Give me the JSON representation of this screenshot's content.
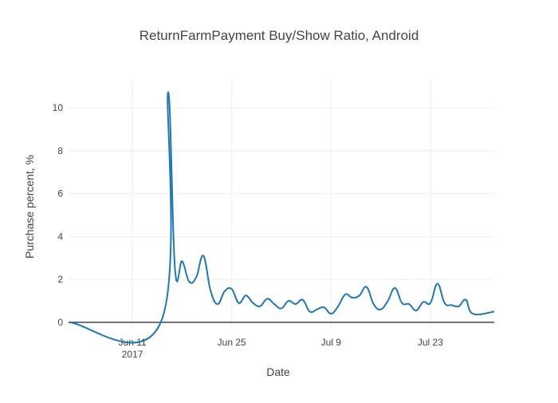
{
  "chart_data": {
    "type": "line",
    "title": "ReturnFarmPayment Buy/Show Ratio, Android",
    "xlabel": "Date",
    "ylabel": "Purchase percent, %",
    "xlim": [
      "2017-06-02",
      "2017-08-01"
    ],
    "ylim": [
      -0.3,
      11.3
    ],
    "grid": true,
    "legend": "none",
    "line_color": "#1f77b4",
    "x_ticks": [
      {
        "date": "2017-06-11",
        "label": "Jun 11",
        "sublabel": "2017"
      },
      {
        "date": "2017-06-25",
        "label": "Jun 25",
        "sublabel": ""
      },
      {
        "date": "2017-07-09",
        "label": "Jul 9",
        "sublabel": ""
      },
      {
        "date": "2017-07-23",
        "label": "Jul 23",
        "sublabel": ""
      }
    ],
    "y_ticks": [
      0,
      2,
      4,
      6,
      8,
      10
    ],
    "series": [
      {
        "x": [
          "2017-06-02",
          "2017-06-15",
          "2017-06-16",
          "2017-06-17",
          "2017-06-18",
          "2017-06-19",
          "2017-06-20",
          "2017-06-21",
          "2017-06-22",
          "2017-06-23",
          "2017-06-24",
          "2017-06-25",
          "2017-06-26",
          "2017-06-27",
          "2017-06-28",
          "2017-06-29",
          "2017-06-30",
          "2017-07-01",
          "2017-07-02",
          "2017-07-03",
          "2017-07-04",
          "2017-07-05",
          "2017-07-06",
          "2017-07-07",
          "2017-07-08",
          "2017-07-09",
          "2017-07-10",
          "2017-07-11",
          "2017-07-12",
          "2017-07-13",
          "2017-07-14",
          "2017-07-15",
          "2017-07-16",
          "2017-07-17",
          "2017-07-18",
          "2017-07-19",
          "2017-07-20",
          "2017-07-21",
          "2017-07-22",
          "2017-07-23",
          "2017-07-24",
          "2017-07-25",
          "2017-07-26",
          "2017-07-27",
          "2017-07-28",
          "2017-07-29",
          "2017-08-01"
        ],
        "y": [
          0,
          0,
          10.7,
          2.5,
          2.85,
          1.9,
          2.1,
          3.1,
          1.5,
          0.85,
          1.45,
          1.55,
          0.9,
          1.25,
          0.9,
          0.75,
          1.1,
          0.85,
          0.65,
          1.0,
          0.85,
          1.05,
          0.5,
          0.6,
          0.7,
          0.4,
          0.75,
          1.3,
          1.15,
          1.25,
          1.65,
          0.85,
          0.6,
          1.0,
          1.6,
          0.9,
          0.85,
          0.55,
          0.95,
          0.9,
          1.8,
          0.9,
          0.8,
          0.75,
          1.05,
          0.4,
          0.5
        ]
      }
    ]
  }
}
